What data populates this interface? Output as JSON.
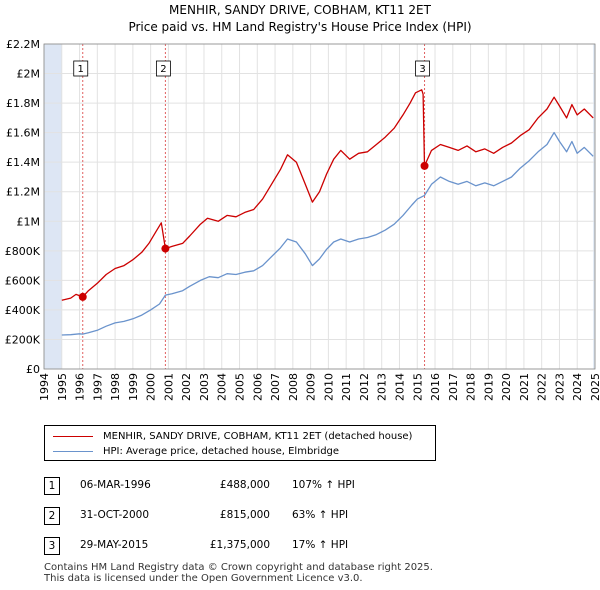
{
  "title_line1": "MENHIR, SANDY DRIVE, COBHAM, KT11 2ET",
  "title_line2": "Price paid vs. HM Land Registry's House Price Index (HPI)",
  "colors": {
    "property": "#cc0000",
    "hpi": "#6a93cc",
    "marker_line": "#e06060",
    "shade": "#dde6f4"
  },
  "chart_data": {
    "type": "line",
    "xlim": [
      1994,
      2025
    ],
    "ylim": [
      0,
      2200000
    ],
    "yticks": [
      0,
      200000,
      400000,
      600000,
      800000,
      1000000,
      1200000,
      1400000,
      1600000,
      1800000,
      2000000,
      2200000
    ],
    "ytick_labels": [
      "£0",
      "£200K",
      "£400K",
      "£600K",
      "£800K",
      "£1M",
      "£1.2M",
      "£1.4M",
      "£1.6M",
      "£1.8M",
      "£2M",
      "£2.2M"
    ],
    "xticks": [
      1994,
      1995,
      1996,
      1997,
      1998,
      1999,
      2000,
      2001,
      2002,
      2003,
      2004,
      2005,
      2006,
      2007,
      2008,
      2009,
      2010,
      2011,
      2012,
      2013,
      2014,
      2015,
      2016,
      2017,
      2018,
      2019,
      2020,
      2021,
      2022,
      2023,
      2024,
      2025
    ],
    "data_start": 1995.0,
    "data_end": 2024.9,
    "grid": true,
    "series": [
      {
        "name": "MENHIR, SANDY DRIVE, COBHAM, KT11 2ET (detached house)",
        "points": [
          [
            1995.0,
            465000
          ],
          [
            1995.5,
            480000
          ],
          [
            1995.8,
            505000
          ],
          [
            1996.18,
            488000
          ],
          [
            1996.5,
            530000
          ],
          [
            1997.0,
            580000
          ],
          [
            1997.5,
            640000
          ],
          [
            1998.0,
            680000
          ],
          [
            1998.5,
            700000
          ],
          [
            1999.0,
            740000
          ],
          [
            1999.5,
            790000
          ],
          [
            1999.9,
            850000
          ],
          [
            2000.3,
            930000
          ],
          [
            2000.6,
            990000
          ],
          [
            2000.83,
            815000
          ],
          [
            2001.2,
            830000
          ],
          [
            2001.8,
            850000
          ],
          [
            2002.2,
            900000
          ],
          [
            2002.8,
            980000
          ],
          [
            2003.2,
            1020000
          ],
          [
            2003.8,
            1000000
          ],
          [
            2004.3,
            1040000
          ],
          [
            2004.8,
            1030000
          ],
          [
            2005.3,
            1060000
          ],
          [
            2005.8,
            1080000
          ],
          [
            2006.3,
            1150000
          ],
          [
            2006.8,
            1250000
          ],
          [
            2007.3,
            1350000
          ],
          [
            2007.7,
            1450000
          ],
          [
            2008.2,
            1400000
          ],
          [
            2008.7,
            1250000
          ],
          [
            2009.1,
            1130000
          ],
          [
            2009.5,
            1200000
          ],
          [
            2009.9,
            1320000
          ],
          [
            2010.3,
            1420000
          ],
          [
            2010.7,
            1480000
          ],
          [
            2011.2,
            1420000
          ],
          [
            2011.7,
            1460000
          ],
          [
            2012.2,
            1470000
          ],
          [
            2012.7,
            1520000
          ],
          [
            2013.2,
            1570000
          ],
          [
            2013.7,
            1630000
          ],
          [
            2014.2,
            1720000
          ],
          [
            2014.6,
            1800000
          ],
          [
            2014.9,
            1870000
          ],
          [
            2015.25,
            1890000
          ],
          [
            2015.33,
            1860000
          ],
          [
            2015.41,
            1375000
          ],
          [
            2015.8,
            1480000
          ],
          [
            2016.3,
            1520000
          ],
          [
            2016.8,
            1500000
          ],
          [
            2017.3,
            1480000
          ],
          [
            2017.8,
            1510000
          ],
          [
            2018.3,
            1470000
          ],
          [
            2018.8,
            1490000
          ],
          [
            2019.3,
            1460000
          ],
          [
            2019.8,
            1500000
          ],
          [
            2020.3,
            1530000
          ],
          [
            2020.8,
            1580000
          ],
          [
            2021.3,
            1620000
          ],
          [
            2021.8,
            1700000
          ],
          [
            2022.3,
            1760000
          ],
          [
            2022.7,
            1840000
          ],
          [
            2023.0,
            1780000
          ],
          [
            2023.4,
            1700000
          ],
          [
            2023.7,
            1790000
          ],
          [
            2024.0,
            1720000
          ],
          [
            2024.4,
            1760000
          ],
          [
            2024.9,
            1700000
          ]
        ]
      },
      {
        "name": "HPI: Average price, detached house, Elmbridge",
        "points": [
          [
            1995.0,
            230000
          ],
          [
            1995.5,
            232000
          ],
          [
            1996.0,
            238000
          ],
          [
            1996.18,
            236000
          ],
          [
            1996.5,
            245000
          ],
          [
            1997.0,
            262000
          ],
          [
            1997.5,
            290000
          ],
          [
            1998.0,
            312000
          ],
          [
            1998.5,
            322000
          ],
          [
            1999.0,
            340000
          ],
          [
            1999.5,
            365000
          ],
          [
            2000.0,
            400000
          ],
          [
            2000.5,
            440000
          ],
          [
            2000.83,
            500000
          ],
          [
            2001.2,
            510000
          ],
          [
            2001.8,
            530000
          ],
          [
            2002.2,
            560000
          ],
          [
            2002.8,
            600000
          ],
          [
            2003.3,
            625000
          ],
          [
            2003.8,
            618000
          ],
          [
            2004.3,
            645000
          ],
          [
            2004.8,
            640000
          ],
          [
            2005.3,
            655000
          ],
          [
            2005.8,
            665000
          ],
          [
            2006.3,
            700000
          ],
          [
            2006.8,
            760000
          ],
          [
            2007.3,
            820000
          ],
          [
            2007.7,
            880000
          ],
          [
            2008.2,
            860000
          ],
          [
            2008.7,
            780000
          ],
          [
            2009.1,
            700000
          ],
          [
            2009.5,
            745000
          ],
          [
            2009.9,
            810000
          ],
          [
            2010.3,
            860000
          ],
          [
            2010.7,
            880000
          ],
          [
            2011.2,
            860000
          ],
          [
            2011.7,
            880000
          ],
          [
            2012.2,
            890000
          ],
          [
            2012.7,
            910000
          ],
          [
            2013.2,
            940000
          ],
          [
            2013.7,
            980000
          ],
          [
            2014.2,
            1040000
          ],
          [
            2014.7,
            1110000
          ],
          [
            2015.0,
            1150000
          ],
          [
            2015.41,
            1175000
          ],
          [
            2015.8,
            1250000
          ],
          [
            2016.3,
            1300000
          ],
          [
            2016.8,
            1270000
          ],
          [
            2017.3,
            1250000
          ],
          [
            2017.8,
            1270000
          ],
          [
            2018.3,
            1240000
          ],
          [
            2018.8,
            1260000
          ],
          [
            2019.3,
            1240000
          ],
          [
            2019.8,
            1270000
          ],
          [
            2020.3,
            1300000
          ],
          [
            2020.8,
            1360000
          ],
          [
            2021.3,
            1410000
          ],
          [
            2021.8,
            1470000
          ],
          [
            2022.3,
            1520000
          ],
          [
            2022.7,
            1600000
          ],
          [
            2023.0,
            1540000
          ],
          [
            2023.4,
            1470000
          ],
          [
            2023.7,
            1540000
          ],
          [
            2024.0,
            1460000
          ],
          [
            2024.4,
            1500000
          ],
          [
            2024.9,
            1440000
          ]
        ]
      }
    ],
    "sales": [
      {
        "label": "1",
        "x": 1996.18,
        "y": 488000
      },
      {
        "label": "2",
        "x": 2000.83,
        "y": 815000
      },
      {
        "label": "3",
        "x": 2015.41,
        "y": 1375000
      }
    ]
  },
  "legend": {
    "property_label": "MENHIR, SANDY DRIVE, COBHAM, KT11 2ET (detached house)",
    "hpi_label": "HPI: Average price, detached house, Elmbridge"
  },
  "transactions": [
    {
      "num": "1",
      "date": "06-MAR-1996",
      "price": "£488,000",
      "hpi": "107% ↑ HPI"
    },
    {
      "num": "2",
      "date": "31-OCT-2000",
      "price": "£815,000",
      "hpi": "63% ↑ HPI"
    },
    {
      "num": "3",
      "date": "29-MAY-2015",
      "price": "£1,375,000",
      "hpi": "17% ↑ HPI"
    }
  ],
  "footer_line1": "Contains HM Land Registry data © Crown copyright and database right 2025.",
  "footer_line2": "This data is licensed under the Open Government Licence v3.0."
}
